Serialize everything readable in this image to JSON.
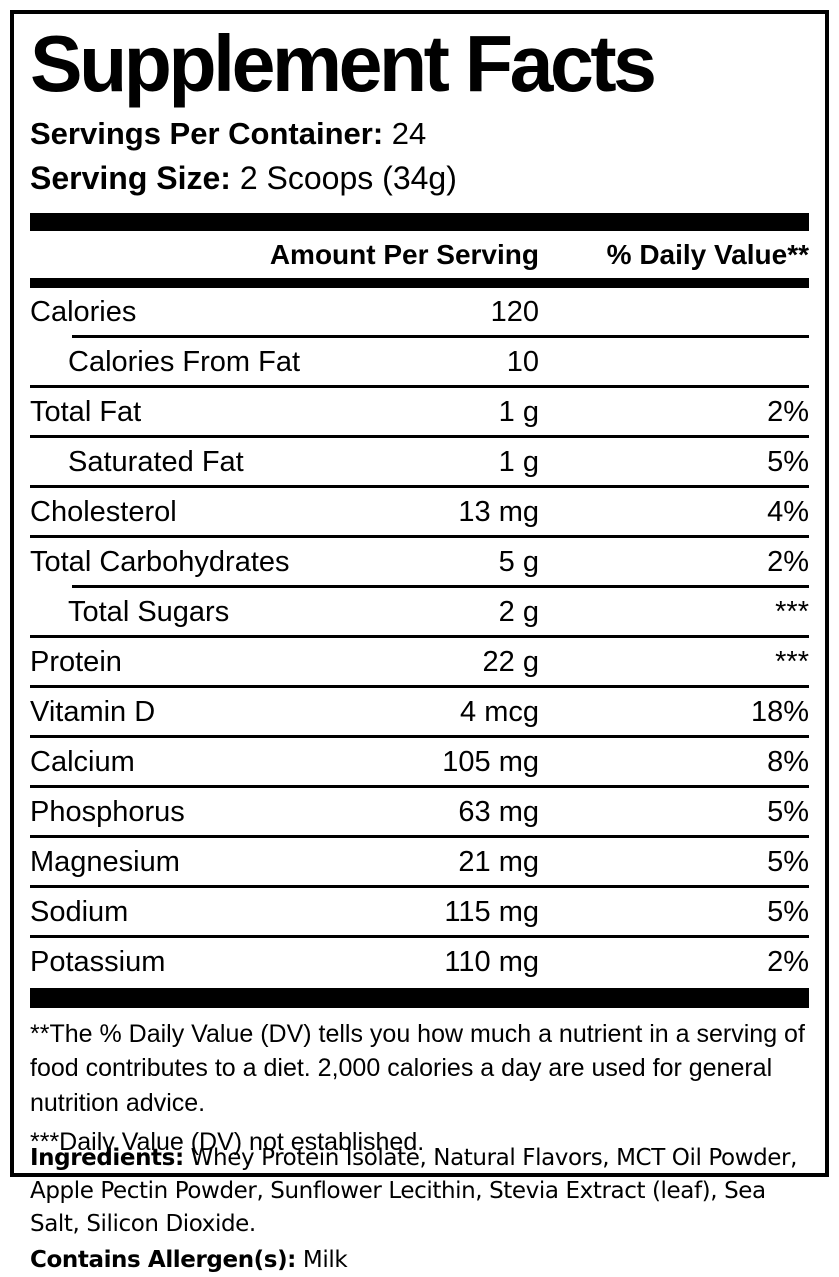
{
  "colors": {
    "text": "#000000",
    "background": "#ffffff"
  },
  "panel": {
    "title": "Supplement Facts",
    "servings_label": "Servings Per Container:",
    "servings_value": "24",
    "serving_size_label": "Serving Size:",
    "serving_size_value": "2 Scoops (34g)",
    "columns": {
      "amount": "Amount Per Serving",
      "daily_value": "% Daily Value**"
    },
    "rows": [
      {
        "name": "Calories",
        "amount": "120",
        "dv": "",
        "indent": false,
        "sep": "indent"
      },
      {
        "name": "Calories From Fat",
        "amount": "10",
        "dv": "",
        "indent": true,
        "sep": "full"
      },
      {
        "name": "Total Fat",
        "amount": "1 g",
        "dv": "2%",
        "indent": false,
        "sep": "full"
      },
      {
        "name": "Saturated Fat",
        "amount": "1 g",
        "dv": "5%",
        "indent": true,
        "sep": "full"
      },
      {
        "name": "Cholesterol",
        "amount": "13 mg",
        "dv": "4%",
        "indent": false,
        "sep": "full"
      },
      {
        "name": "Total Carbohydrates",
        "amount": "5 g",
        "dv": "2%",
        "indent": false,
        "sep": "indent"
      },
      {
        "name": "Total Sugars",
        "amount": "2 g",
        "dv": "***",
        "indent": true,
        "sep": "full"
      },
      {
        "name": "Protein",
        "amount": "22 g",
        "dv": "***",
        "indent": false,
        "sep": "full"
      },
      {
        "name": "Vitamin D",
        "amount": "4 mcg",
        "dv": "18%",
        "indent": false,
        "sep": "full"
      },
      {
        "name": "Calcium",
        "amount": "105 mg",
        "dv": "8%",
        "indent": false,
        "sep": "full"
      },
      {
        "name": "Phosphorus",
        "amount": "63 mg",
        "dv": "5%",
        "indent": false,
        "sep": "full"
      },
      {
        "name": "Magnesium",
        "amount": "21 mg",
        "dv": "5%",
        "indent": false,
        "sep": "full"
      },
      {
        "name": "Sodium",
        "amount": "115 mg",
        "dv": "5%",
        "indent": false,
        "sep": "full"
      },
      {
        "name": "Potassium",
        "amount": "110 mg",
        "dv": "2%",
        "indent": false,
        "sep": "none"
      }
    ],
    "footnotes": [
      "**The % Daily Value (DV) tells you how much a nutrient in a serving of food contributes to a diet. 2,000 calories a day are used for general nutrition advice.",
      "***Daily Value (DV) not established."
    ]
  },
  "ingredients": {
    "label": "Ingredients:",
    "value": "Whey Protein Isolate, Natural Flavors, MCT Oil Powder, Apple Pectin Powder, Sunflower Lecithin, Stevia Extract (leaf), Sea Salt, Silicon Dioxide.",
    "allergen_label": "Contains Allergen(s):",
    "allergen_value": "Milk"
  }
}
